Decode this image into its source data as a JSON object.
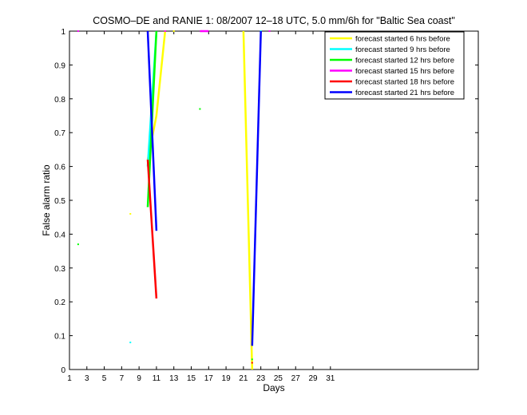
{
  "chart_data": {
    "type": "line",
    "title": "COSMO–DE and RANIE 1: 08/2007 12–18 UTC, 5.0 mm/6h for \"Baltic Sea coast\"",
    "xlabel": "Days",
    "ylabel": "False alarm ratio",
    "xlim": [
      1,
      48
    ],
    "ylim": [
      0,
      1
    ],
    "x_ticks": [
      1,
      3,
      5,
      7,
      9,
      11,
      13,
      15,
      17,
      19,
      21,
      23,
      25,
      27,
      29,
      31
    ],
    "y_ticks": [
      0,
      0.1,
      0.2,
      0.3,
      0.4,
      0.5,
      0.6,
      0.7,
      0.8,
      0.9,
      1
    ],
    "y_tick_labels": [
      "0",
      "0.1",
      "0.2",
      "0.3",
      "0.4",
      "0.5",
      "0.6",
      "0.7",
      "0.8",
      "0.9",
      "1"
    ],
    "grid": false,
    "legend_position": "top-right",
    "series": [
      {
        "name": "forecast started 6 hrs before",
        "color": "#ffff00",
        "segments": [
          [
            [
              10,
              0.62
            ],
            [
              11,
              0.75
            ],
            [
              12,
              1.0
            ]
          ],
          [
            [
              21,
              1.0
            ],
            [
              22,
              0.0
            ]
          ]
        ],
        "points": [
          [
            8,
            0.46
          ],
          [
            13,
            1.0
          ]
        ]
      },
      {
        "name": "forecast started 9 hrs before",
        "color": "#00ffff",
        "segments": [
          [
            [
              10,
              0.6
            ],
            [
              11,
              1.0
            ]
          ]
        ],
        "points": [
          [
            8,
            0.08
          ],
          [
            23,
            1.0
          ],
          [
            31,
            0.99
          ]
        ]
      },
      {
        "name": "forecast started 12 hrs before",
        "color": "#00ff00",
        "segments": [
          [
            [
              10,
              0.48
            ],
            [
              11,
              1.0
            ]
          ]
        ],
        "points": [
          [
            2,
            0.37
          ],
          [
            16,
            0.77
          ],
          [
            22,
            0.03
          ]
        ]
      },
      {
        "name": "forecast started 15 hrs before",
        "color": "#ff00ff",
        "segments": [
          [
            [
              16,
              1.0
            ],
            [
              17,
              1.0
            ]
          ]
        ],
        "points": [
          [
            2,
            1.0
          ],
          [
            12,
            1.0
          ],
          [
            24,
            1.0
          ],
          [
            31,
            0.96
          ]
        ]
      },
      {
        "name": "forecast started 18 hrs before",
        "color": "#ff0000",
        "segments": [
          [
            [
              10,
              0.62
            ],
            [
              11,
              0.21
            ]
          ]
        ],
        "points": [
          [
            22,
            0.02
          ]
        ]
      },
      {
        "name": "forecast started 21 hrs before",
        "color": "#0000ff",
        "segments": [
          [
            [
              10,
              1.0
            ],
            [
              11,
              0.41
            ]
          ],
          [
            [
              22,
              0.07
            ],
            [
              23,
              1.0
            ]
          ]
        ],
        "points": []
      }
    ]
  }
}
